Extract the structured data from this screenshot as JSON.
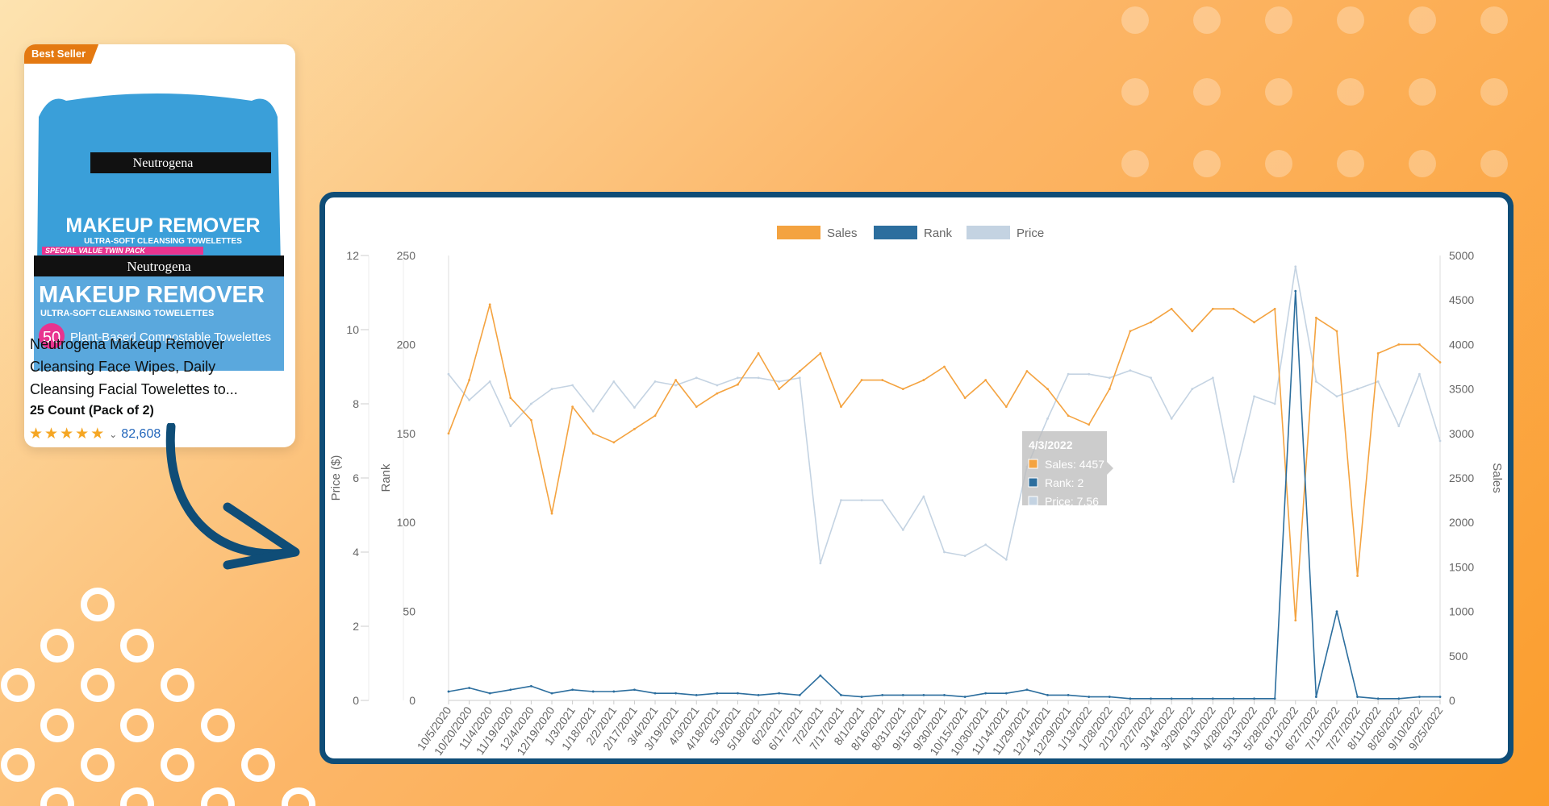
{
  "card": {
    "badge": "Best Seller",
    "package_brand": "Neutrogena",
    "package_title": "MAKEUP REMOVER",
    "package_subtitle": "ULTRA-SOFT CLEANSING TOWELETTES",
    "package_ribbon": "SPECIAL VALUE TWIN PACK",
    "package_count": "50",
    "package_count_text": "Plant-Based Compostable Towelettes",
    "title_lines": [
      "Neutrogena Makeup Remover",
      "Cleansing Face Wipes, Daily",
      "Cleansing Facial Towelettes to..."
    ],
    "count": "25 Count (Pack of 2)",
    "rating_stars": 5,
    "reviews": "82,608"
  },
  "colors": {
    "sales": "#f4a340",
    "rank": "#2c6e9e",
    "price": "#c4d3e2",
    "panel_border": "#0f4d77",
    "arrow": "#0f4d77"
  },
  "chart_data": {
    "type": "line",
    "legend": [
      "Sales",
      "Rank",
      "Price"
    ],
    "x": [
      "10/5/2020",
      "10/20/2020",
      "11/4/2020",
      "11/19/2020",
      "12/4/2020",
      "12/19/2020",
      "1/3/2021",
      "1/18/2021",
      "2/2/2021",
      "2/17/2021",
      "3/4/2021",
      "3/19/2021",
      "4/3/2021",
      "4/18/2021",
      "5/3/2021",
      "5/18/2021",
      "6/2/2021",
      "6/17/2021",
      "7/2/2021",
      "7/17/2021",
      "8/1/2021",
      "8/16/2021",
      "8/31/2021",
      "9/15/2021",
      "9/30/2021",
      "10/15/2021",
      "10/30/2021",
      "11/14/2021",
      "11/29/2021",
      "12/14/2021",
      "12/29/2021",
      "1/13/2022",
      "1/28/2022",
      "2/12/2022",
      "2/27/2022",
      "3/14/2022",
      "3/29/2022",
      "4/13/2022",
      "4/28/2022",
      "5/13/2022",
      "5/28/2022",
      "6/12/2022",
      "6/27/2022",
      "7/12/2022",
      "7/27/2022",
      "8/11/2022",
      "8/26/2022",
      "9/10/2022",
      "9/25/2022"
    ],
    "axes": {
      "price": {
        "label": "Price ($)",
        "ylim": [
          0,
          12
        ],
        "ticks": [
          0,
          2,
          4,
          6,
          8,
          10,
          12
        ]
      },
      "rank": {
        "label": "Rank",
        "ylim": [
          0,
          250
        ],
        "ticks": [
          0,
          50,
          100,
          150,
          200,
          250
        ]
      },
      "sales": {
        "label": "Sales",
        "ylim": [
          0,
          5000
        ],
        "ticks": [
          0,
          500,
          1000,
          1500,
          2000,
          2500,
          3000,
          3500,
          4000,
          4500,
          5000
        ]
      }
    },
    "series": [
      {
        "name": "Sales",
        "axis": "sales",
        "values": [
          3000,
          3600,
          4450,
          3400,
          3150,
          2100,
          3300,
          3000,
          2900,
          3050,
          3200,
          3600,
          3300,
          3450,
          3550,
          3900,
          3500,
          3700,
          3900,
          3300,
          3600,
          3600,
          3500,
          3600,
          3750,
          3400,
          3600,
          3300,
          3700,
          3500,
          3200,
          3100,
          3500,
          4150,
          4250,
          4400,
          4150,
          4400,
          4400,
          4250,
          4400,
          900,
          4300,
          4150,
          1400,
          3900,
          4000,
          4000,
          3800
        ]
      },
      {
        "name": "Rank",
        "axis": "rank",
        "values": [
          5,
          7,
          4,
          6,
          8,
          4,
          6,
          5,
          5,
          6,
          4,
          4,
          3,
          4,
          4,
          3,
          4,
          3,
          14,
          3,
          2,
          3,
          3,
          3,
          3,
          2,
          4,
          4,
          6,
          3,
          3,
          2,
          2,
          1,
          1,
          1,
          1,
          1,
          1,
          1,
          1,
          230,
          2,
          50,
          2,
          1,
          1,
          2,
          2
        ]
      },
      {
        "name": "Price",
        "axis": "price",
        "values": [
          8.8,
          8.1,
          8.6,
          7.4,
          8.0,
          8.4,
          8.5,
          7.8,
          8.6,
          7.9,
          8.6,
          8.5,
          8.7,
          8.5,
          8.7,
          8.7,
          8.6,
          8.7,
          3.7,
          5.4,
          5.4,
          5.4,
          4.6,
          5.5,
          4.0,
          3.9,
          4.2,
          3.8,
          6.3,
          7.6,
          8.8,
          8.8,
          8.7,
          8.9,
          8.7,
          7.6,
          8.4,
          8.7,
          5.9,
          8.2,
          8.0,
          11.7,
          8.6,
          8.2,
          8.4,
          8.6,
          7.4,
          8.8,
          7.0
        ]
      }
    ],
    "tooltip": {
      "date": "4/3/2022",
      "lines": [
        "Sales: 4457",
        "Rank: 2",
        "Price: 7.56"
      ]
    }
  }
}
